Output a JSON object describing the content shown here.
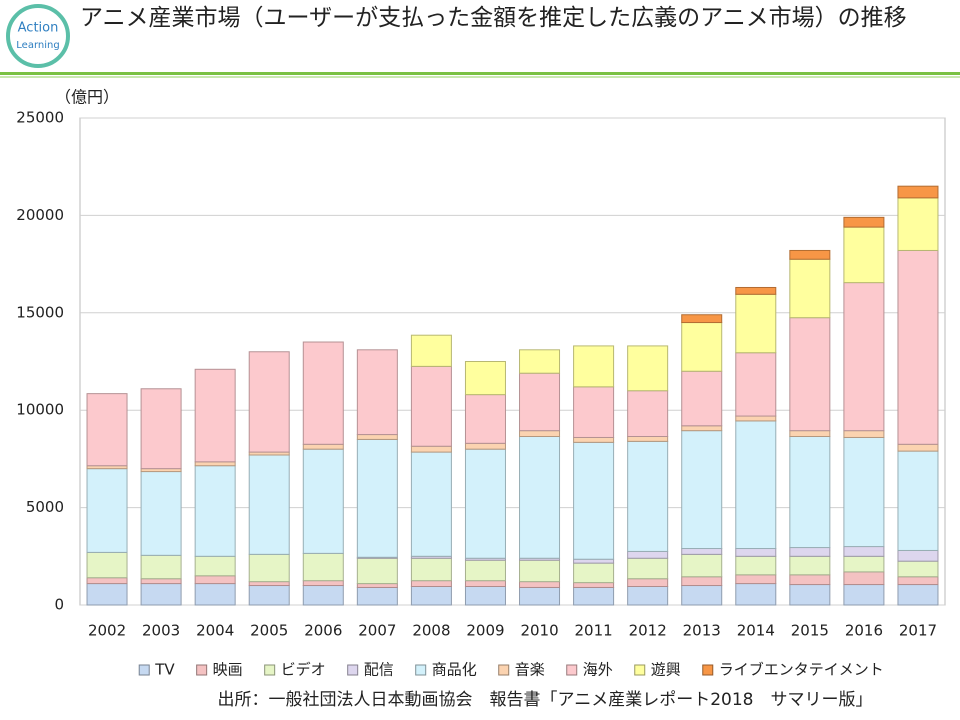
{
  "logo_text": [
    "Action",
    "Learning"
  ],
  "chart_data": {
    "type": "stacked_bar",
    "title": "アニメ産業市場（ユーザーが支払った金額を推定した広義のアニメ市場）の推移",
    "y_label": "（億円）",
    "source": "出所：一般社団法人日本動画協会　報告書「アニメ産業レポート2018　サマリー版」",
    "categories": [
      "2002",
      "2003",
      "2004",
      "2005",
      "2006",
      "2007",
      "2008",
      "2009",
      "2010",
      "2011",
      "2012",
      "2013",
      "2014",
      "2015",
      "2016",
      "2017"
    ],
    "ylim": [
      0,
      25000
    ],
    "yticks": [
      0,
      5000,
      10000,
      15000,
      20000,
      25000
    ],
    "grid": true,
    "legend": "bottom",
    "series": [
      {
        "name": "TV",
        "color": "#c6d9f1",
        "values": [
          1100,
          1100,
          1100,
          1000,
          1000,
          900,
          950,
          950,
          900,
          900,
          950,
          1000,
          1100,
          1050,
          1050,
          1050
        ]
      },
      {
        "name": "映画",
        "color": "#f4c2c2",
        "values": [
          300,
          250,
          400,
          200,
          250,
          200,
          300,
          300,
          300,
          250,
          400,
          450,
          450,
          500,
          650,
          400
        ]
      },
      {
        "name": "ビデオ",
        "color": "#e6f5c6",
        "values": [
          1300,
          1200,
          1000,
          1400,
          1400,
          1300,
          1150,
          1050,
          1100,
          1000,
          1050,
          1150,
          950,
          950,
          800,
          800
        ]
      },
      {
        "name": "配信",
        "color": "#ddd6ee",
        "values": [
          0,
          0,
          0,
          0,
          0,
          50,
          100,
          100,
          100,
          200,
          350,
          300,
          400,
          450,
          500,
          550
        ]
      },
      {
        "name": "商品化",
        "color": "#d3f1fb",
        "values": [
          4300,
          4300,
          4650,
          5100,
          5350,
          6050,
          5350,
          5600,
          6250,
          6000,
          5650,
          6050,
          6550,
          5700,
          5600,
          5100
        ]
      },
      {
        "name": "音楽",
        "color": "#fbd3b0",
        "values": [
          150,
          150,
          200,
          150,
          250,
          250,
          300,
          300,
          300,
          250,
          250,
          250,
          250,
          300,
          350,
          350
        ]
      },
      {
        "name": "海外",
        "color": "#fcc9cd",
        "values": [
          3700,
          4100,
          4750,
          5150,
          5250,
          4350,
          4100,
          2500,
          2950,
          2600,
          2350,
          2800,
          3250,
          5800,
          7600,
          9950
        ]
      },
      {
        "name": "遊興",
        "color": "#ffff9e",
        "values": [
          0,
          0,
          0,
          0,
          0,
          0,
          1600,
          1700,
          1200,
          2100,
          2300,
          2500,
          3000,
          3000,
          2850,
          2700
        ]
      },
      {
        "name": "ライブエンタテイメント",
        "color": "#f79646",
        "values": [
          0,
          0,
          0,
          0,
          0,
          0,
          0,
          0,
          0,
          0,
          0,
          400,
          350,
          450,
          500,
          600
        ]
      }
    ]
  }
}
